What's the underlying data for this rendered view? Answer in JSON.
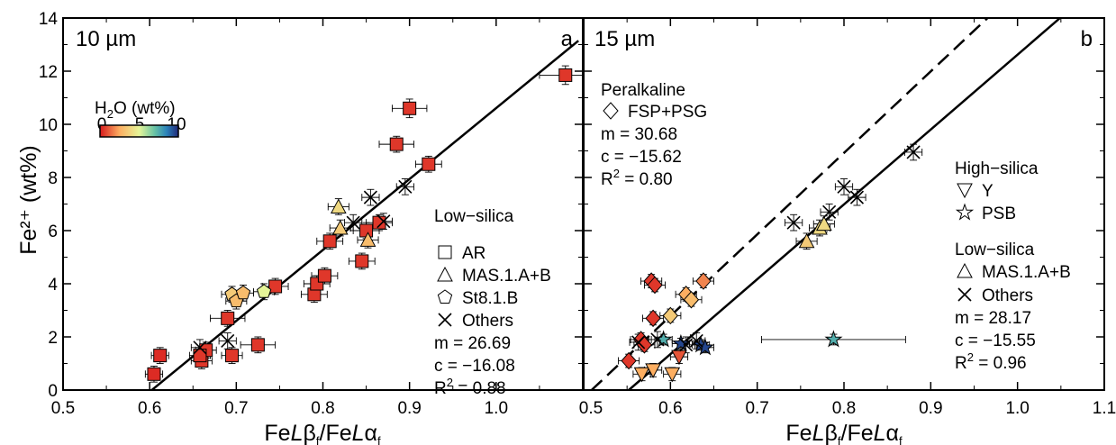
{
  "chart_data": [
    {
      "type": "scatter",
      "panel_label": "a",
      "spot_size": "10 µm",
      "xlabel": "FeLβ/FeLα",
      "ylabel": "Fe²⁺ (wt%)",
      "xlim": [
        0.5,
        1.1
      ],
      "ylim": [
        0,
        14
      ],
      "x_ticks": [
        "0.5",
        "0.6",
        "0.7",
        "0.8",
        "0.9",
        "1.0",
        "1.1"
      ],
      "y_ticks": [
        "0",
        "2",
        "4",
        "6",
        "8",
        "10",
        "12",
        "14"
      ],
      "colorbar": {
        "label_main": "H",
        "label_sub": "2",
        "label_rest": "O (wt%)",
        "ticks": [
          "0",
          "5",
          "10"
        ],
        "range": [
          0,
          10
        ]
      },
      "legend_title": "Low−silica",
      "legend": [
        {
          "symbol": "square",
          "name": "AR"
        },
        {
          "symbol": "triangle",
          "name": "MAS.1.A+B"
        },
        {
          "symbol": "pentagon",
          "name": "St8.1.B"
        },
        {
          "symbol": "cross",
          "name": "Others"
        }
      ],
      "fit_lines": [
        {
          "style": "solid",
          "m": 26.69,
          "c": -16.08,
          "x_range": [
            0.6,
            1.095
          ],
          "text_m": "m = 26.69",
          "text_c": "c = −16.08",
          "text_r2": "0.88"
        }
      ],
      "points": [
        {
          "symbol": "square",
          "x": 0.605,
          "y": 0.6,
          "h2o": 0.3,
          "xerr": 0.01,
          "yerr": 0.3
        },
        {
          "symbol": "square",
          "x": 0.612,
          "y": 1.3,
          "h2o": 0.3,
          "xerr": 0.01,
          "yerr": 0.3
        },
        {
          "symbol": "square",
          "x": 0.66,
          "y": 1.1,
          "h2o": 0.5,
          "xerr": 0.012,
          "yerr": 0.3
        },
        {
          "symbol": "square",
          "x": 0.665,
          "y": 1.5,
          "h2o": 0.5,
          "xerr": 0.012,
          "yerr": 0.3
        },
        {
          "symbol": "square",
          "x": 0.658,
          "y": 1.3,
          "h2o": 0.5,
          "xerr": 0.012,
          "yerr": 0.3
        },
        {
          "symbol": "square",
          "x": 0.695,
          "y": 1.3,
          "h2o": 0.5,
          "xerr": 0.012,
          "yerr": 0.3
        },
        {
          "symbol": "square",
          "x": 0.725,
          "y": 1.7,
          "h2o": 0.5,
          "xerr": 0.02,
          "yerr": 0.3
        },
        {
          "symbol": "square",
          "x": 0.69,
          "y": 2.7,
          "h2o": 0.5,
          "xerr": 0.02,
          "yerr": 0.3
        },
        {
          "symbol": "square",
          "x": 0.745,
          "y": 3.9,
          "h2o": 0.5,
          "xerr": 0.015,
          "yerr": 0.3
        },
        {
          "symbol": "square",
          "x": 0.79,
          "y": 3.6,
          "h2o": 0.5,
          "xerr": 0.015,
          "yerr": 0.3
        },
        {
          "symbol": "square",
          "x": 0.793,
          "y": 4.0,
          "h2o": 0.5,
          "xerr": 0.015,
          "yerr": 0.3
        },
        {
          "symbol": "square",
          "x": 0.802,
          "y": 4.3,
          "h2o": 0.5,
          "xerr": 0.015,
          "yerr": 0.3
        },
        {
          "symbol": "square",
          "x": 0.845,
          "y": 4.85,
          "h2o": 0.5,
          "xerr": 0.015,
          "yerr": 0.3
        },
        {
          "symbol": "square",
          "x": 0.808,
          "y": 5.6,
          "h2o": 0.5,
          "xerr": 0.015,
          "yerr": 0.3
        },
        {
          "symbol": "square",
          "x": 0.85,
          "y": 6.0,
          "h2o": 0.5,
          "xerr": 0.015,
          "yerr": 0.3
        },
        {
          "symbol": "square",
          "x": 0.865,
          "y": 6.3,
          "h2o": 0.5,
          "xerr": 0.015,
          "yerr": 0.3
        },
        {
          "symbol": "square",
          "x": 0.885,
          "y": 9.25,
          "h2o": 0.5,
          "xerr": 0.02,
          "yerr": 0.3
        },
        {
          "symbol": "square",
          "x": 0.9,
          "y": 10.6,
          "h2o": 0.5,
          "xerr": 0.02,
          "yerr": 0.35
        },
        {
          "symbol": "square",
          "x": 0.922,
          "y": 8.5,
          "h2o": 0.5,
          "xerr": 0.015,
          "yerr": 0.3
        },
        {
          "symbol": "square",
          "x": 1.08,
          "y": 11.85,
          "h2o": 0.5,
          "xerr": 0.03,
          "yerr": 0.35
        },
        {
          "symbol": "triangle",
          "x": 0.818,
          "y": 6.9,
          "h2o": 4.0,
          "xerr": 0.012,
          "yerr": 0.3
        },
        {
          "symbol": "triangle",
          "x": 0.82,
          "y": 6.1,
          "h2o": 3.5,
          "xerr": 0.012,
          "yerr": 0.3
        },
        {
          "symbol": "triangle",
          "x": 0.852,
          "y": 5.65,
          "h2o": 3.0,
          "xerr": 0.012,
          "yerr": 0.3
        },
        {
          "symbol": "pentagon",
          "x": 0.695,
          "y": 3.6,
          "h2o": 3.5,
          "xerr": 0.012,
          "yerr": 0.3
        },
        {
          "symbol": "pentagon",
          "x": 0.7,
          "y": 3.35,
          "h2o": 3.0,
          "xerr": 0.012,
          "yerr": 0.3
        },
        {
          "symbol": "pentagon",
          "x": 0.708,
          "y": 3.65,
          "h2o": 3.0,
          "xerr": 0.012,
          "yerr": 0.3
        },
        {
          "symbol": "pentagon",
          "x": 0.732,
          "y": 3.7,
          "h2o": 5.0,
          "xerr": 0.012,
          "yerr": 0.3
        },
        {
          "symbol": "cross",
          "x": 0.658,
          "y": 1.6,
          "xerr": 0.01,
          "yerr": 0.3
        },
        {
          "symbol": "cross",
          "x": 0.69,
          "y": 1.85,
          "xerr": 0.01,
          "yerr": 0.3
        },
        {
          "symbol": "cross",
          "x": 0.835,
          "y": 6.3,
          "xerr": 0.01,
          "yerr": 0.3
        },
        {
          "symbol": "cross",
          "x": 0.855,
          "y": 7.25,
          "xerr": 0.01,
          "yerr": 0.3
        },
        {
          "symbol": "cross",
          "x": 0.895,
          "y": 7.65,
          "xerr": 0.01,
          "yerr": 0.3
        },
        {
          "symbol": "cross",
          "x": 0.87,
          "y": 6.35,
          "xerr": 0.01,
          "yerr": 0.3
        }
      ]
    },
    {
      "type": "scatter",
      "panel_label": "b",
      "spot_size": "15 µm",
      "xlabel": "FeLβ/FeLα",
      "xlim": [
        0.5,
        1.1
      ],
      "ylim": [
        0,
        14
      ],
      "x_ticks": [
        "0.5",
        "0.6",
        "0.7",
        "0.8",
        "0.9",
        "1.0",
        "1.1"
      ],
      "legend_groups": [
        {
          "title": "Peralkaline",
          "items": [
            {
              "symbol": "diamond",
              "name": "FSP+PSG"
            }
          ]
        },
        {
          "title": "High−silica",
          "items": [
            {
              "symbol": "tri-down",
              "name": "Y"
            },
            {
              "symbol": "star",
              "name": "PSB"
            }
          ]
        },
        {
          "title": "Low−silica",
          "items": [
            {
              "symbol": "triangle",
              "name": "MAS.1.A+B"
            },
            {
              "symbol": "cross",
              "name": "Others"
            }
          ]
        }
      ],
      "fit_lines": [
        {
          "style": "dashed",
          "m": 30.68,
          "c": -15.62,
          "x_range": [
            0.509,
            0.966
          ],
          "text_m": "m = 30.68",
          "text_c": "c = −15.62",
          "text_r2": "0.80"
        },
        {
          "style": "solid",
          "m": 28.17,
          "c": -15.55,
          "x_range": [
            0.552,
            1.049
          ],
          "text_m": "m = 28.17",
          "text_c": "c = −15.55",
          "text_r2": "0.96"
        }
      ],
      "points": [
        {
          "symbol": "diamond",
          "x": 0.578,
          "y": 4.1,
          "h2o": 0.5,
          "xerr": 0.012,
          "yerr": 0.25
        },
        {
          "symbol": "diamond",
          "x": 0.582,
          "y": 3.95,
          "h2o": 0.5,
          "xerr": 0.012,
          "yerr": 0.25
        },
        {
          "symbol": "diamond",
          "x": 0.58,
          "y": 2.7,
          "h2o": 0.5,
          "xerr": 0.012,
          "yerr": 0.25
        },
        {
          "symbol": "diamond",
          "x": 0.566,
          "y": 1.9,
          "h2o": 0.5,
          "xerr": 0.012,
          "yerr": 0.25
        },
        {
          "symbol": "diamond",
          "x": 0.57,
          "y": 1.7,
          "h2o": 0.5,
          "xerr": 0.012,
          "yerr": 0.25
        },
        {
          "symbol": "diamond",
          "x": 0.552,
          "y": 1.1,
          "h2o": 0.5,
          "xerr": 0.012,
          "yerr": 0.25
        },
        {
          "symbol": "diamond",
          "x": 0.6,
          "y": 2.8,
          "h2o": 3.5,
          "xerr": 0.012,
          "yerr": 0.25
        },
        {
          "symbol": "diamond",
          "x": 0.618,
          "y": 3.6,
          "h2o": 2.5,
          "xerr": 0.012,
          "yerr": 0.25
        },
        {
          "symbol": "diamond",
          "x": 0.624,
          "y": 3.4,
          "h2o": 3.0,
          "xerr": 0.012,
          "yerr": 0.25
        },
        {
          "symbol": "diamond",
          "x": 0.638,
          "y": 4.1,
          "h2o": 1.8,
          "xerr": 0.012,
          "yerr": 0.25
        },
        {
          "symbol": "tri-down",
          "x": 0.567,
          "y": 0.6,
          "h2o": 2.5,
          "xerr": 0.01,
          "yerr": 0.25
        },
        {
          "symbol": "tri-down",
          "x": 0.58,
          "y": 0.75,
          "h2o": 2.5,
          "xerr": 0.01,
          "yerr": 0.25
        },
        {
          "symbol": "tri-down",
          "x": 0.602,
          "y": 0.6,
          "h2o": 2.5,
          "xerr": 0.01,
          "yerr": 0.25
        },
        {
          "symbol": "tri-down",
          "x": 0.61,
          "y": 1.25,
          "h2o": 1.0,
          "xerr": 0.01,
          "yerr": 0.25
        },
        {
          "symbol": "star",
          "x": 0.788,
          "y": 1.9,
          "h2o": 7.5,
          "xerr": 0.083,
          "yerr": 0.2
        },
        {
          "symbol": "star",
          "x": 0.592,
          "y": 1.9,
          "h2o": 7.5,
          "xerr": 0.01,
          "yerr": 0.2
        },
        {
          "symbol": "star",
          "x": 0.612,
          "y": 1.75,
          "h2o": 9.5,
          "xerr": 0.01,
          "yerr": 0.2
        },
        {
          "symbol": "star",
          "x": 0.635,
          "y": 1.7,
          "h2o": 9.5,
          "xerr": 0.01,
          "yerr": 0.2
        },
        {
          "symbol": "star",
          "x": 0.64,
          "y": 1.6,
          "h2o": 9.5,
          "xerr": 0.01,
          "yerr": 0.2
        },
        {
          "symbol": "triangle",
          "x": 0.757,
          "y": 5.6,
          "h2o": 3.5,
          "xerr": 0.012,
          "yerr": 0.3
        },
        {
          "symbol": "triangle",
          "x": 0.772,
          "y": 6.1,
          "h2o": 4.0,
          "xerr": 0.012,
          "yerr": 0.3
        },
        {
          "symbol": "triangle",
          "x": 0.777,
          "y": 6.25,
          "h2o": 4.0,
          "xerr": 0.012,
          "yerr": 0.3
        },
        {
          "symbol": "cross",
          "x": 0.742,
          "y": 6.3,
          "xerr": 0.01,
          "yerr": 0.3
        },
        {
          "symbol": "cross",
          "x": 0.783,
          "y": 6.7,
          "xerr": 0.01,
          "yerr": 0.3
        },
        {
          "symbol": "cross",
          "x": 0.8,
          "y": 7.65,
          "xerr": 0.01,
          "yerr": 0.3
        },
        {
          "symbol": "cross",
          "x": 0.815,
          "y": 7.25,
          "xerr": 0.01,
          "yerr": 0.3
        },
        {
          "symbol": "cross",
          "x": 0.88,
          "y": 8.95,
          "xerr": 0.01,
          "yerr": 0.3
        },
        {
          "symbol": "cross",
          "x": 0.563,
          "y": 1.8,
          "xerr": 0.01,
          "yerr": 0.3
        },
        {
          "symbol": "cross",
          "x": 0.585,
          "y": 1.9,
          "xerr": 0.01,
          "yerr": 0.3
        },
        {
          "symbol": "cross",
          "x": 0.63,
          "y": 1.85,
          "xerr": 0.01,
          "yerr": 0.3
        },
        {
          "symbol": "cross",
          "x": 0.618,
          "y": 1.7,
          "xerr": 0.01,
          "yerr": 0.3
        }
      ]
    }
  ]
}
